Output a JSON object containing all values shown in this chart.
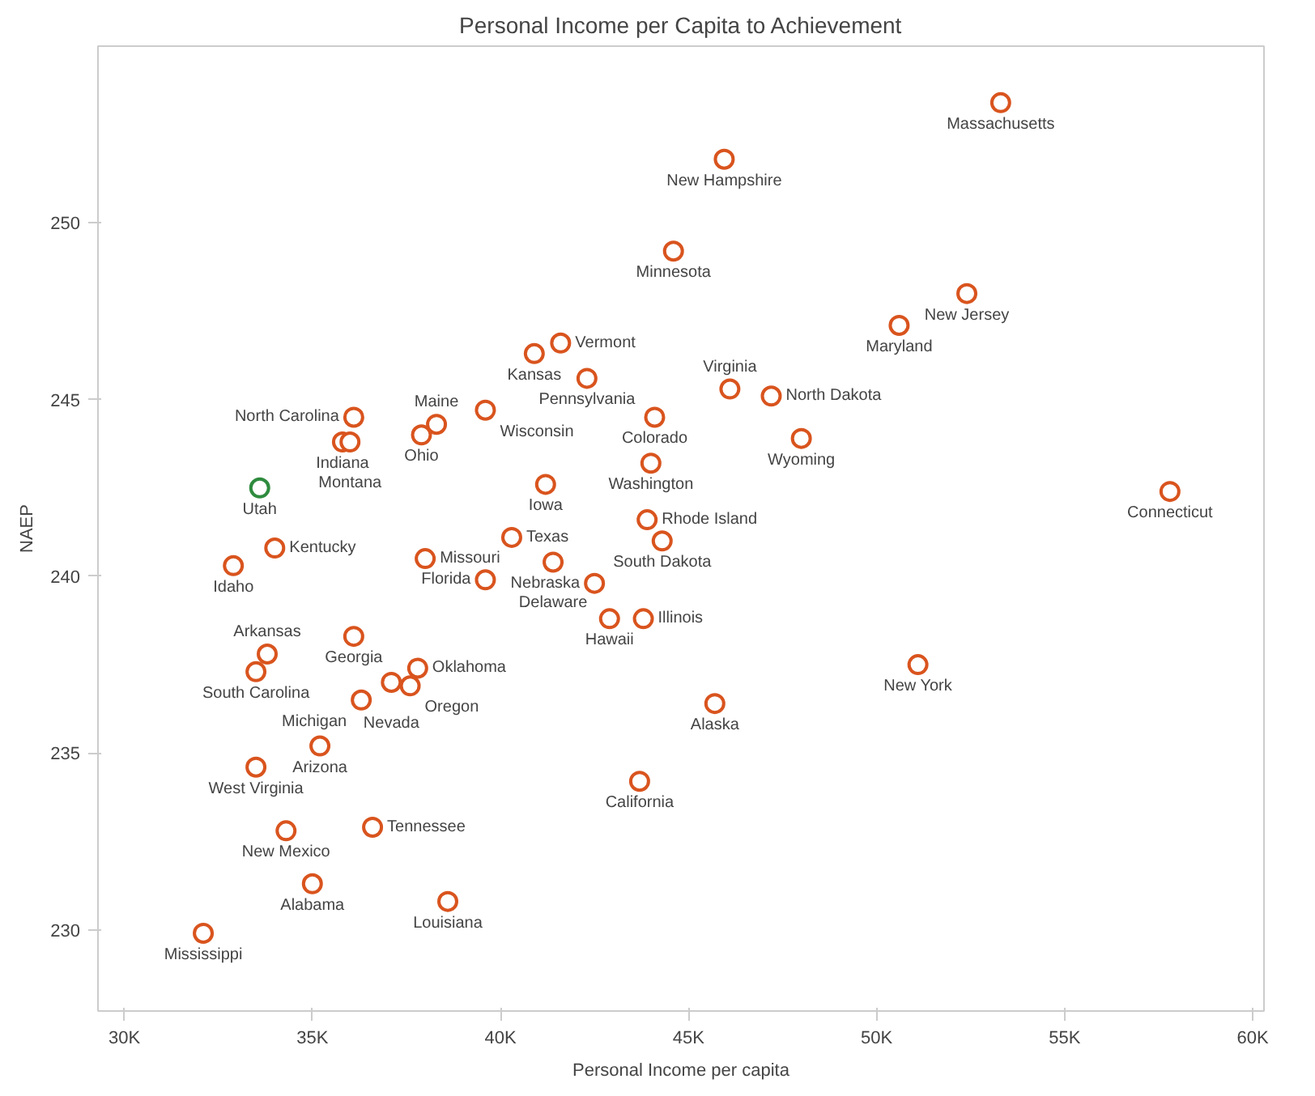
{
  "chart_data": {
    "type": "scatter",
    "title": "Personal Income per Capita to Achievement",
    "xlabel": "Personal Income per capita",
    "ylabel": "NAEP",
    "marker": "circle",
    "grid": false,
    "xlim": [
      29300,
      60300
    ],
    "ylim": [
      227.7,
      255.0
    ],
    "xticks": [
      {
        "value": 30000,
        "label": "30K"
      },
      {
        "value": 35000,
        "label": "35K"
      },
      {
        "value": 40000,
        "label": "40K"
      },
      {
        "value": 45000,
        "label": "45K"
      },
      {
        "value": 50000,
        "label": "50K"
      },
      {
        "value": 55000,
        "label": "55K"
      },
      {
        "value": 60000,
        "label": "60K"
      }
    ],
    "yticks": [
      230,
      235,
      240,
      245,
      250
    ],
    "series": [
      {
        "x": [
          53300,
          45950,
          44600,
          52400,
          50600,
          41600,
          40900,
          42300,
          46100,
          47200,
          44100,
          48000,
          44000,
          57800,
          41200,
          43900,
          44300,
          40300,
          41400,
          42500,
          39600,
          42900,
          43800,
          51100,
          45700,
          43700,
          38000,
          39600,
          38300,
          37900,
          36100,
          35800,
          36000,
          33600,
          34000,
          32900,
          36100,
          33800,
          33500,
          37800,
          37100,
          37600,
          36300,
          35200,
          33500,
          34300,
          36600,
          35000,
          38600,
          32100
        ],
        "values": [
          253.4,
          251.8,
          249.2,
          248.0,
          247.1,
          246.6,
          246.3,
          245.6,
          245.3,
          245.1,
          244.5,
          243.9,
          243.2,
          242.4,
          242.6,
          241.6,
          241.0,
          241.1,
          240.4,
          239.8,
          239.9,
          238.8,
          238.8,
          237.5,
          236.4,
          234.2,
          240.5,
          244.7,
          244.3,
          244.0,
          244.5,
          243.8,
          243.8,
          242.5,
          240.8,
          240.3,
          238.3,
          237.8,
          237.3,
          237.4,
          237.0,
          236.9,
          236.5,
          235.2,
          234.6,
          232.8,
          232.9,
          231.3,
          230.8,
          229.9
        ],
        "colors": [
          "#d9541e",
          "#d9541e",
          "#d9541e",
          "#d9541e",
          "#d9541e",
          "#d9541e",
          "#d9541e",
          "#d9541e",
          "#d9541e",
          "#d9541e",
          "#d9541e",
          "#d9541e",
          "#d9541e",
          "#d9541e",
          "#d9541e",
          "#d9541e",
          "#d9541e",
          "#d9541e",
          "#d9541e",
          "#d9541e",
          "#d9541e",
          "#d9541e",
          "#d9541e",
          "#d9541e",
          "#d9541e",
          "#d9541e",
          "#d9541e",
          "#d9541e",
          "#d9541e",
          "#d9541e",
          "#d9541e",
          "#d9541e",
          "#d9541e",
          "#2e8b3e",
          "#d9541e",
          "#d9541e",
          "#d9541e",
          "#d9541e",
          "#d9541e",
          "#d9541e",
          "#d9541e",
          "#d9541e",
          "#d9541e",
          "#d9541e",
          "#d9541e",
          "#d9541e",
          "#d9541e",
          "#d9541e",
          "#d9541e",
          "#d9541e"
        ]
      }
    ],
    "annotations": [
      {
        "text": "Massachusetts",
        "x": 53300,
        "y": 253.4
      },
      {
        "text": "New Hampshire",
        "x": 45950,
        "y": 251.8
      },
      {
        "text": "Minnesota",
        "x": 44600,
        "y": 249.2
      },
      {
        "text": "New Jersey",
        "x": 52400,
        "y": 248.0
      },
      {
        "text": "Maryland",
        "x": 50600,
        "y": 247.1
      },
      {
        "text": "Vermont",
        "x": 41600,
        "y": 246.6
      },
      {
        "text": "Kansas",
        "x": 40900,
        "y": 246.3
      },
      {
        "text": "Pennsylvania",
        "x": 42300,
        "y": 245.6
      },
      {
        "text": "Virginia",
        "x": 46100,
        "y": 245.3
      },
      {
        "text": "North Dakota",
        "x": 47200,
        "y": 245.1
      },
      {
        "text": "Colorado",
        "x": 44100,
        "y": 244.5
      },
      {
        "text": "Wyoming",
        "x": 48000,
        "y": 243.9
      },
      {
        "text": "Washington",
        "x": 44000,
        "y": 243.2
      },
      {
        "text": "Connecticut",
        "x": 57800,
        "y": 242.4
      },
      {
        "text": "Iowa",
        "x": 41200,
        "y": 242.6
      },
      {
        "text": "Rhode Island",
        "x": 43900,
        "y": 241.6
      },
      {
        "text": "South Dakota",
        "x": 44300,
        "y": 241.0
      },
      {
        "text": "Texas",
        "x": 40300,
        "y": 241.1
      },
      {
        "text": "Delaware",
        "x": 41400,
        "y": 240.4
      },
      {
        "text": "Nebraska",
        "x": 42500,
        "y": 239.8
      },
      {
        "text": "Florida",
        "x": 39600,
        "y": 239.9
      },
      {
        "text": "Hawaii",
        "x": 42900,
        "y": 238.8
      },
      {
        "text": "Illinois",
        "x": 43800,
        "y": 238.8
      },
      {
        "text": "New York",
        "x": 51100,
        "y": 237.5
      },
      {
        "text": "Alaska",
        "x": 45700,
        "y": 236.4
      },
      {
        "text": "California",
        "x": 43700,
        "y": 234.2
      },
      {
        "text": "Missouri",
        "x": 38000,
        "y": 240.5
      },
      {
        "text": "Wisconsin",
        "x": 39600,
        "y": 244.7
      },
      {
        "text": "Maine",
        "x": 38300,
        "y": 244.3
      },
      {
        "text": "Ohio",
        "x": 37900,
        "y": 244.0
      },
      {
        "text": "North Carolina",
        "x": 36100,
        "y": 244.5
      },
      {
        "text": "Indiana",
        "x": 35800,
        "y": 243.8
      },
      {
        "text": "Montana",
        "x": 36000,
        "y": 243.8
      },
      {
        "text": "Utah",
        "x": 33600,
        "y": 242.5
      },
      {
        "text": "Kentucky",
        "x": 34000,
        "y": 240.8
      },
      {
        "text": "Idaho",
        "x": 32900,
        "y": 240.3
      },
      {
        "text": "Georgia",
        "x": 36100,
        "y": 238.3
      },
      {
        "text": "Arkansas",
        "x": 33800,
        "y": 237.8
      },
      {
        "text": "South Carolina",
        "x": 33500,
        "y": 237.3
      },
      {
        "text": "Oklahoma",
        "x": 37800,
        "y": 237.4
      },
      {
        "text": "Nevada",
        "x": 37100,
        "y": 237.0
      },
      {
        "text": "Oregon",
        "x": 37600,
        "y": 236.9
      },
      {
        "text": "Michigan",
        "x": 36300,
        "y": 236.5
      },
      {
        "text": "Arizona",
        "x": 35200,
        "y": 235.2
      },
      {
        "text": "West Virginia",
        "x": 33500,
        "y": 234.6
      },
      {
        "text": "New Mexico",
        "x": 34300,
        "y": 232.8
      },
      {
        "text": "Tennessee",
        "x": 36600,
        "y": 232.9
      },
      {
        "text": "Alabama",
        "x": 35000,
        "y": 231.3
      },
      {
        "text": "Louisiana",
        "x": 38600,
        "y": 230.8
      },
      {
        "text": "Mississippi",
        "x": 32100,
        "y": 229.9
      }
    ]
  }
}
